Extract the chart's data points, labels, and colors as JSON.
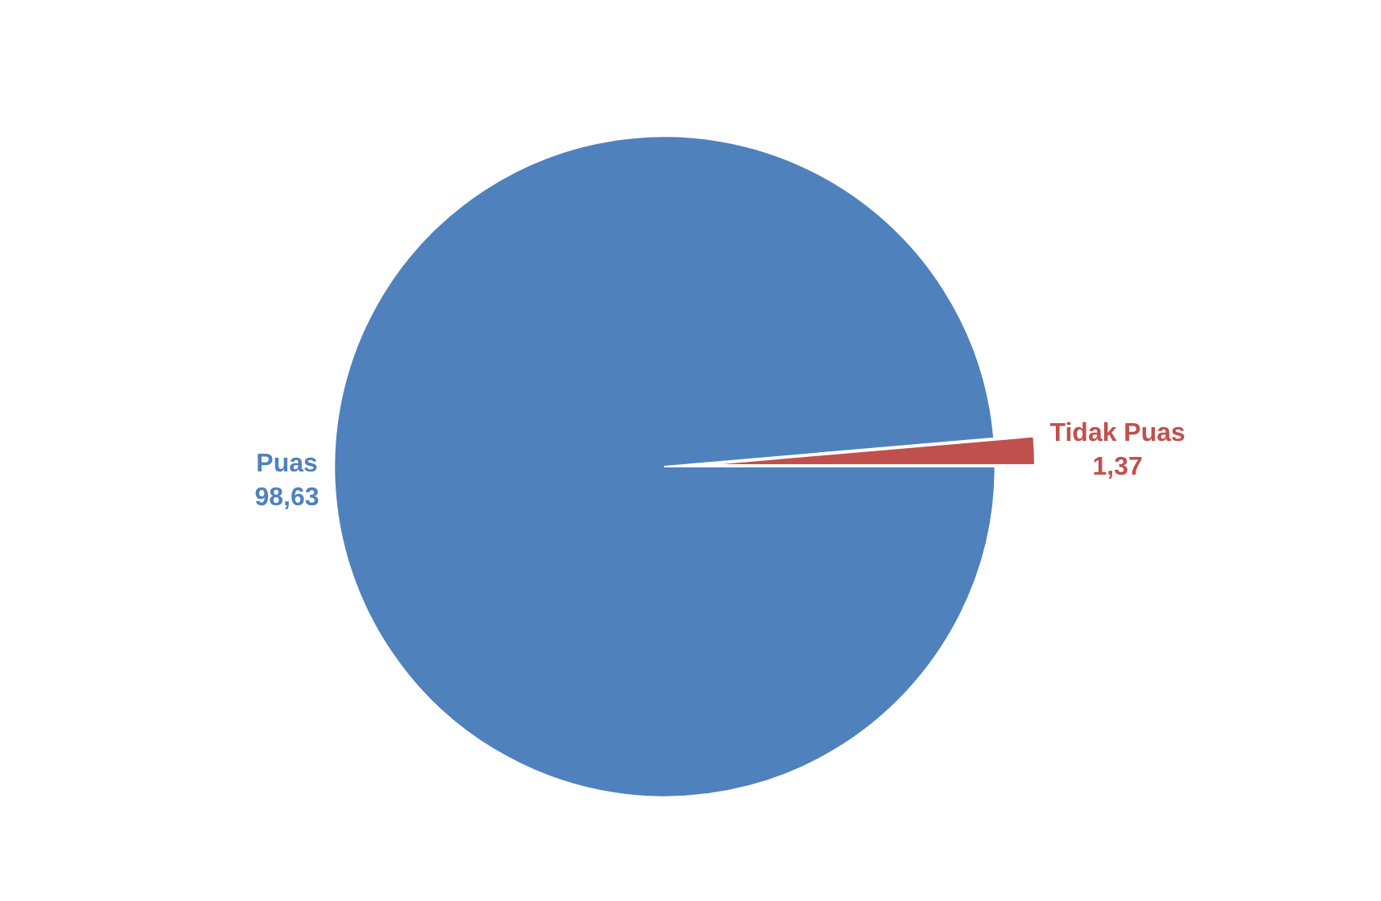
{
  "chart_data": {
    "type": "pie",
    "categories": [
      "Puas",
      "Tidak Puas"
    ],
    "values": [
      98.63,
      1.37
    ],
    "value_labels": [
      "98,63",
      "1,37"
    ],
    "colors": [
      "#4f81bd",
      "#c0504d"
    ],
    "legend": false
  }
}
